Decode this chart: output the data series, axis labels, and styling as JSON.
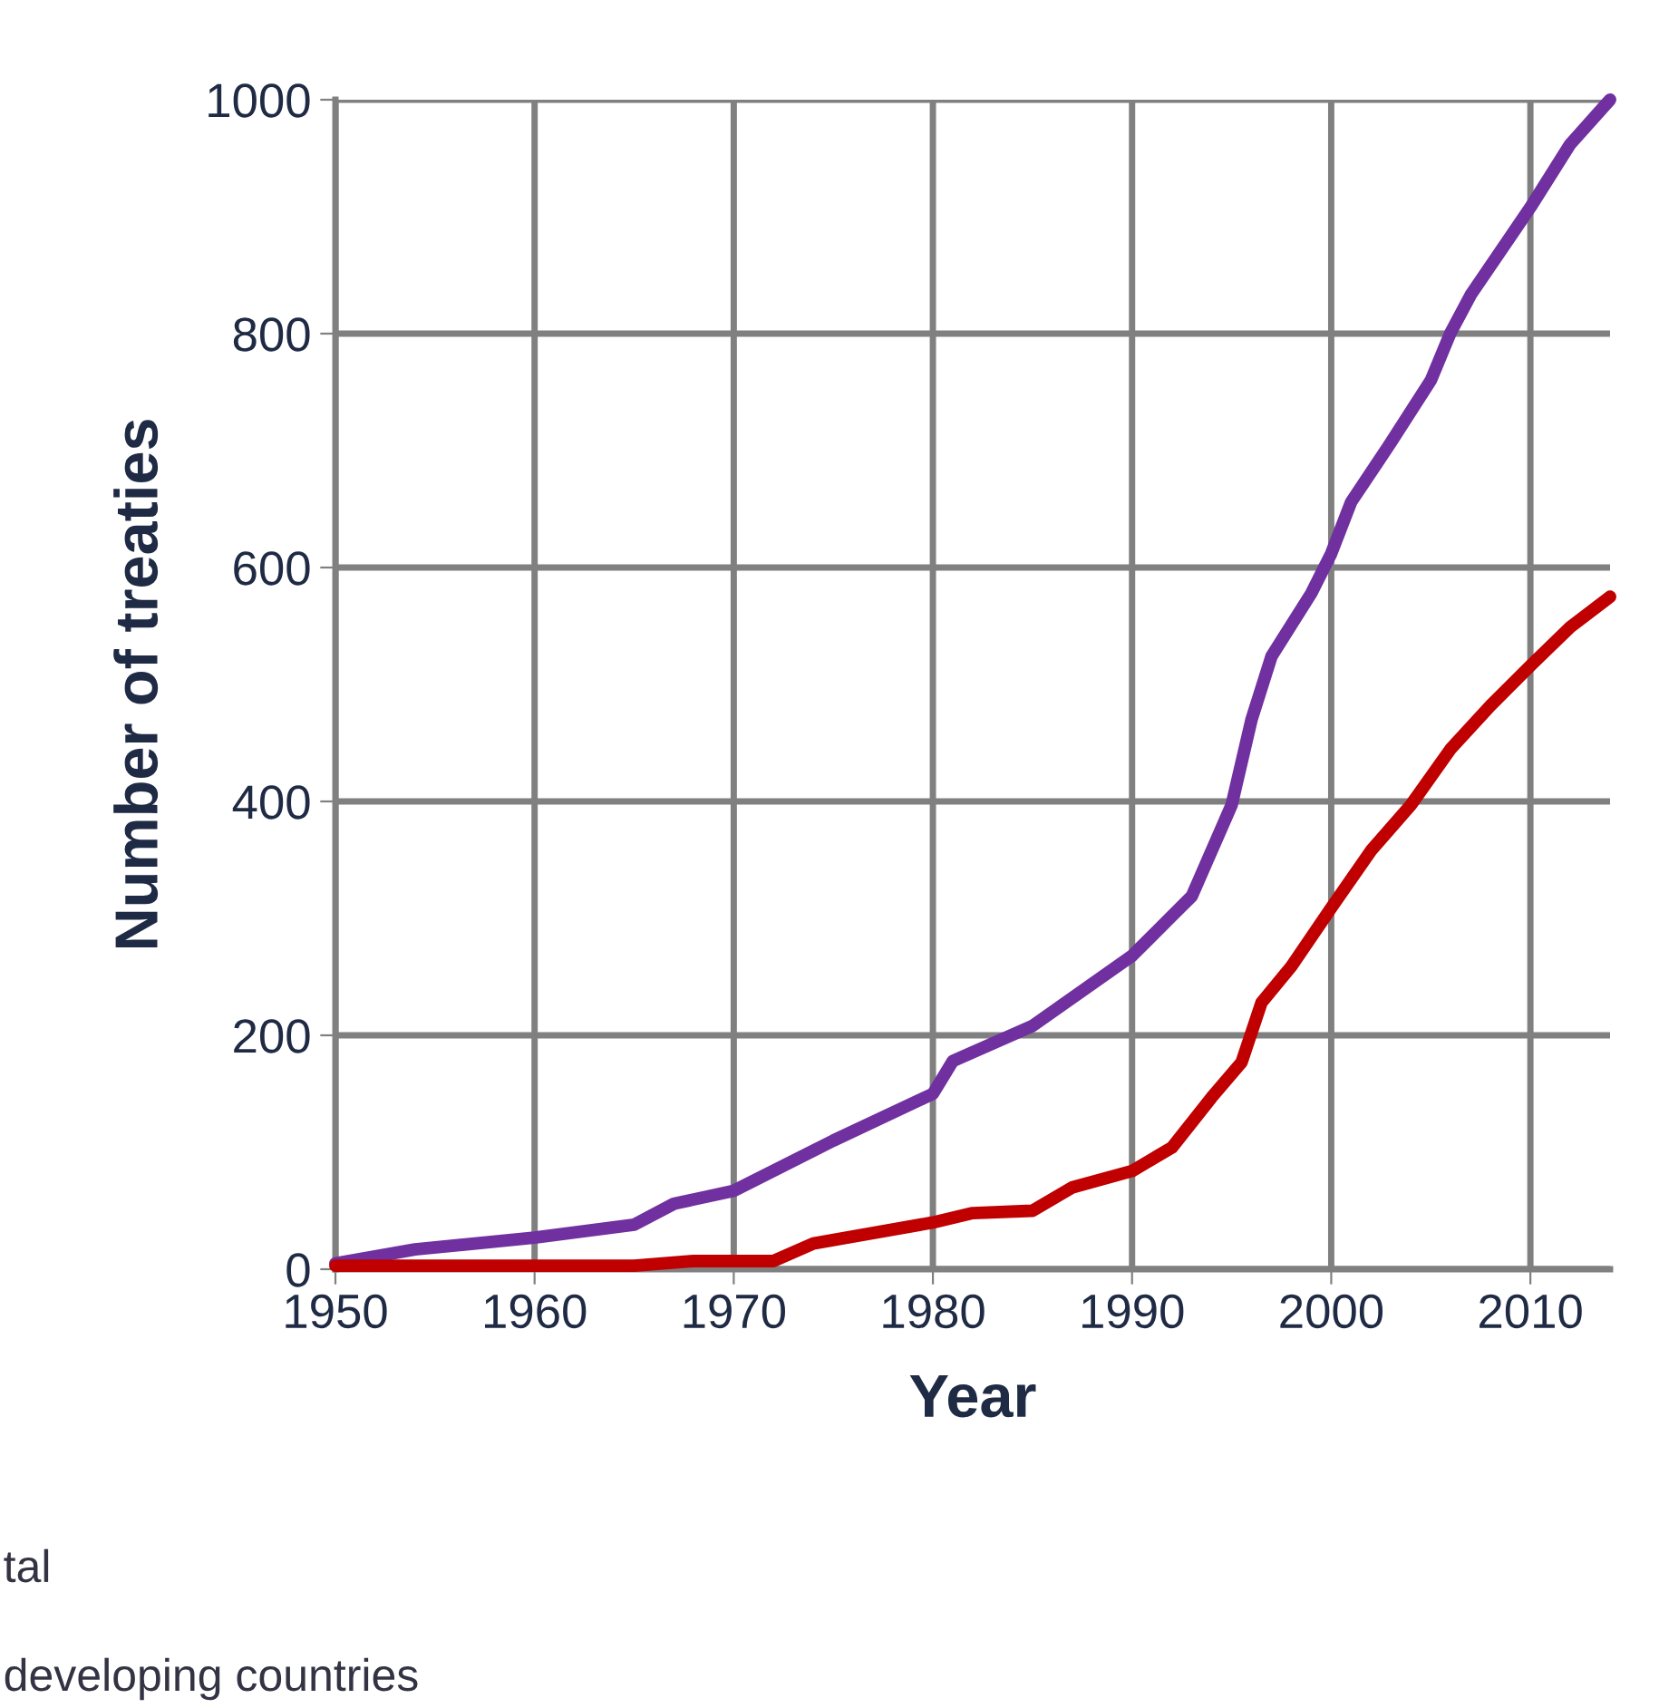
{
  "chart_data": {
    "type": "line",
    "xlabel": "Year",
    "ylabel": "Number of treaties",
    "xlim": [
      1950,
      2014
    ],
    "xticks": [
      1950,
      1960,
      1970,
      1980,
      1990,
      2000,
      2010
    ],
    "ylim": [
      0,
      1000
    ],
    "yticks": [
      0,
      200,
      400,
      600,
      800,
      1000
    ],
    "grid": true,
    "annotations": [
      "tal",
      "developing countries"
    ],
    "series": [
      {
        "color": "#7030a0",
        "x": [
          1950,
          1954,
          1960,
          1965,
          1967,
          1970,
          1975,
          1980,
          1981,
          1985,
          1990,
          1993,
          1995,
          1996,
          1997,
          1999,
          2000,
          2001,
          2003,
          2005,
          2006,
          2007,
          2010,
          2012,
          2014
        ],
        "values": [
          5,
          17,
          27,
          38,
          56,
          67,
          110,
          150,
          178,
          208,
          268,
          319,
          397,
          470,
          524,
          578,
          612,
          656,
          707,
          760,
          801,
          833,
          908,
          962,
          1000
        ]
      },
      {
        "color": "#c00000",
        "x": [
          1950,
          1965,
          1968,
          1972,
          1974,
          1980,
          1982,
          1985,
          1987,
          1990,
          1992,
          1994,
          1995.5,
          1996.5,
          1998,
          2000,
          2002,
          2004,
          2006,
          2008,
          2010,
          2012,
          2014
        ],
        "values": [
          3,
          3,
          7,
          7,
          22,
          40,
          48,
          50,
          70,
          84,
          104,
          147,
          177,
          228,
          259,
          309,
          358,
          397,
          445,
          482,
          516,
          549,
          575
        ]
      }
    ]
  }
}
